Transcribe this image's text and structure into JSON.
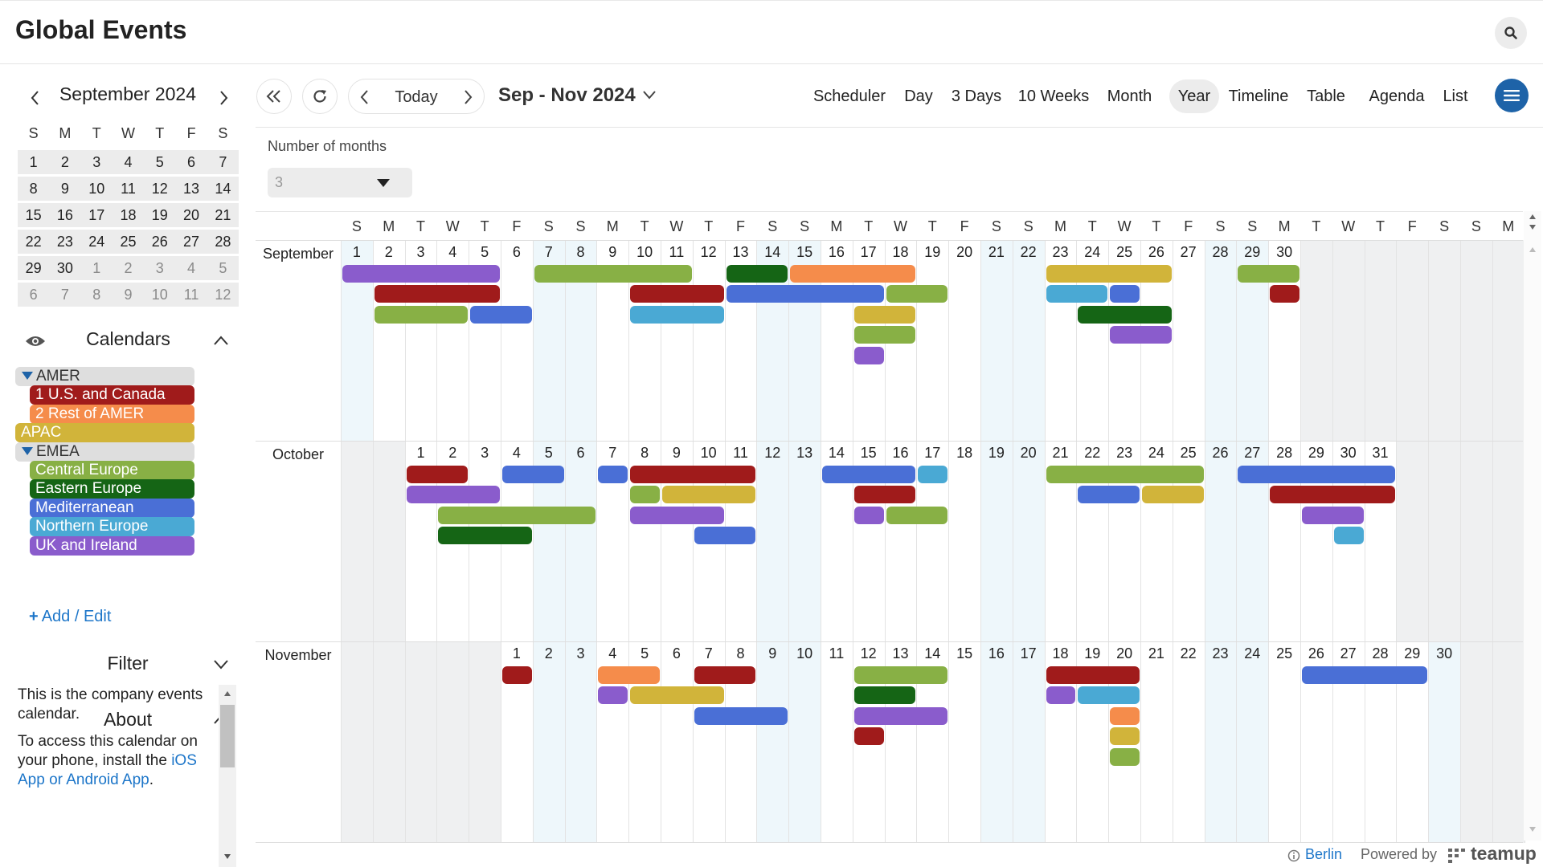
{
  "app": {
    "title": "Global Events"
  },
  "mini_calendar": {
    "title": "September 2024",
    "dow": [
      "S",
      "M",
      "T",
      "W",
      "T",
      "F",
      "S"
    ],
    "weeks": [
      [
        "1",
        "2",
        "3",
        "4",
        "5",
        "6",
        "7"
      ],
      [
        "8",
        "9",
        "10",
        "11",
        "12",
        "13",
        "14"
      ],
      [
        "15",
        "16",
        "17",
        "18",
        "19",
        "20",
        "21"
      ],
      [
        "22",
        "23",
        "24",
        "25",
        "26",
        "27",
        "28"
      ],
      [
        "29",
        "30",
        "1",
        "2",
        "3",
        "4",
        "5"
      ],
      [
        "6",
        "7",
        "8",
        "9",
        "10",
        "11",
        "12"
      ]
    ]
  },
  "calendars": {
    "title": "Calendars",
    "items": [
      {
        "label": "AMER",
        "type": "group",
        "level": 0
      },
      {
        "label": "1 U.S. and Canada",
        "color": "#a01b1b",
        "level": 1
      },
      {
        "label": "2 Rest of AMER",
        "color": "#f58c4b",
        "level": 1
      },
      {
        "label": "APAC",
        "color": "#d1b43a",
        "level": 0
      },
      {
        "label": "EMEA",
        "type": "group",
        "level": 0
      },
      {
        "label": "Central Europe",
        "color": "#88b045",
        "level": 1
      },
      {
        "label": "Eastern Europe",
        "color": "#156515",
        "level": 1
      },
      {
        "label": "Mediterranean",
        "color": "#4a6fd6",
        "level": 1
      },
      {
        "label": "Northern Europe",
        "color": "#4aa9d4",
        "level": 1
      },
      {
        "label": "UK and Ireland",
        "color": "#8a5ccc",
        "level": 1
      }
    ],
    "add_edit": "Add / Edit"
  },
  "filter": {
    "title": "Filter"
  },
  "about": {
    "title": "About",
    "text1": "This is the company events calendar.",
    "text2": "To access this calendar on your phone, install the ",
    "link": "iOS App or Android App",
    "text2_end": "."
  },
  "toolbar": {
    "today": "Today",
    "range": "Sep - Nov 2024",
    "views": [
      "Scheduler",
      "Day",
      "3 Days",
      "10 Weeks",
      "Month",
      "Year",
      "Timeline",
      "Table",
      "Agenda",
      "List"
    ],
    "active_view": "Year",
    "months_label": "Number of months",
    "months_value": "3"
  },
  "grid": {
    "dow_header": [
      "S",
      "M",
      "T",
      "W",
      "T",
      "F",
      "S",
      "S",
      "M",
      "T",
      "W",
      "T",
      "F",
      "S",
      "S",
      "M",
      "T",
      "W",
      "T",
      "F",
      "S",
      "S",
      "M",
      "T",
      "W",
      "T",
      "F",
      "S",
      "S",
      "M",
      "T",
      "W",
      "T",
      "F",
      "S",
      "S",
      "M"
    ],
    "months": [
      {
        "name": "September",
        "start": 0,
        "days": 30
      },
      {
        "name": "October",
        "start": 2,
        "days": 31
      },
      {
        "name": "November",
        "start": 5,
        "days": 30
      }
    ]
  },
  "events": [
    {
      "m": 0,
      "s": 0,
      "e": 4,
      "r": 0,
      "c": "#8a5ccc"
    },
    {
      "m": 0,
      "s": 1,
      "e": 4,
      "r": 1,
      "c": "#a01b1b"
    },
    {
      "m": 0,
      "s": 1,
      "e": 3,
      "r": 2,
      "c": "#88b045"
    },
    {
      "m": 0,
      "s": 4,
      "e": 5,
      "r": 2,
      "c": "#4a6fd6"
    },
    {
      "m": 0,
      "s": 6,
      "e": 10,
      "r": 0,
      "c": "#88b045"
    },
    {
      "m": 0,
      "s": 9,
      "e": 11,
      "r": 1,
      "c": "#a01b1b"
    },
    {
      "m": 0,
      "s": 9,
      "e": 11,
      "r": 2,
      "c": "#4aa9d4"
    },
    {
      "m": 0,
      "s": 12,
      "e": 13,
      "r": 0,
      "c": "#156515"
    },
    {
      "m": 0,
      "s": 14,
      "e": 17,
      "r": 0,
      "c": "#f58c4b"
    },
    {
      "m": 0,
      "s": 12,
      "e": 16,
      "r": 1,
      "c": "#4a6fd6"
    },
    {
      "m": 0,
      "s": 17,
      "e": 18,
      "r": 1,
      "c": "#88b045"
    },
    {
      "m": 0,
      "s": 16,
      "e": 17,
      "r": 2,
      "c": "#d1b43a"
    },
    {
      "m": 0,
      "s": 16,
      "e": 17,
      "r": 3,
      "c": "#88b045"
    },
    {
      "m": 0,
      "s": 16,
      "e": 16,
      "r": 4,
      "c": "#8a5ccc"
    },
    {
      "m": 0,
      "s": 22,
      "e": 25,
      "r": 0,
      "c": "#d1b43a"
    },
    {
      "m": 0,
      "s": 22,
      "e": 23,
      "r": 1,
      "c": "#4aa9d4"
    },
    {
      "m": 0,
      "s": 24,
      "e": 24,
      "r": 1,
      "c": "#4a6fd6"
    },
    {
      "m": 0,
      "s": 23,
      "e": 25,
      "r": 2,
      "c": "#156515"
    },
    {
      "m": 0,
      "s": 24,
      "e": 25,
      "r": 3,
      "c": "#8a5ccc"
    },
    {
      "m": 0,
      "s": 28,
      "e": 29,
      "r": 0,
      "c": "#88b045"
    },
    {
      "m": 0,
      "s": 29,
      "e": 29,
      "r": 1,
      "c": "#a01b1b"
    },
    {
      "m": 1,
      "s": 0,
      "e": 1,
      "r": 0,
      "c": "#a01b1b"
    },
    {
      "m": 1,
      "s": 0,
      "e": 2,
      "r": 1,
      "c": "#8a5ccc"
    },
    {
      "m": 1,
      "s": 1,
      "e": 5,
      "r": 2,
      "c": "#88b045"
    },
    {
      "m": 1,
      "s": 1,
      "e": 3,
      "r": 3,
      "c": "#156515"
    },
    {
      "m": 1,
      "s": 3,
      "e": 4,
      "r": 0,
      "c": "#4a6fd6"
    },
    {
      "m": 1,
      "s": 6,
      "e": 6,
      "r": 0,
      "c": "#4a6fd6"
    },
    {
      "m": 1,
      "s": 7,
      "e": 10,
      "r": 0,
      "c": "#a01b1b"
    },
    {
      "m": 1,
      "s": 7,
      "e": 7,
      "r": 1,
      "c": "#88b045"
    },
    {
      "m": 1,
      "s": 8,
      "e": 10,
      "r": 1,
      "c": "#d1b43a"
    },
    {
      "m": 1,
      "s": 7,
      "e": 9,
      "r": 2,
      "c": "#8a5ccc"
    },
    {
      "m": 1,
      "s": 9,
      "e": 10,
      "r": 3,
      "c": "#4a6fd6"
    },
    {
      "m": 1,
      "s": 13,
      "e": 15,
      "r": 0,
      "c": "#4a6fd6"
    },
    {
      "m": 1,
      "s": 16,
      "e": 16,
      "r": 0,
      "c": "#4aa9d4"
    },
    {
      "m": 1,
      "s": 14,
      "e": 15,
      "r": 1,
      "c": "#a01b1b"
    },
    {
      "m": 1,
      "s": 14,
      "e": 14,
      "r": 2,
      "c": "#8a5ccc"
    },
    {
      "m": 1,
      "s": 15,
      "e": 16,
      "r": 2,
      "c": "#88b045"
    },
    {
      "m": 1,
      "s": 20,
      "e": 24,
      "r": 0,
      "c": "#88b045"
    },
    {
      "m": 1,
      "s": 21,
      "e": 22,
      "r": 1,
      "c": "#4a6fd6"
    },
    {
      "m": 1,
      "s": 23,
      "e": 24,
      "r": 1,
      "c": "#d1b43a"
    },
    {
      "m": 1,
      "s": 26,
      "e": 30,
      "r": 0,
      "c": "#4a6fd6"
    },
    {
      "m": 1,
      "s": 27,
      "e": 30,
      "r": 1,
      "c": "#a01b1b"
    },
    {
      "m": 1,
      "s": 28,
      "e": 29,
      "r": 2,
      "c": "#8a5ccc"
    },
    {
      "m": 1,
      "s": 29,
      "e": 29,
      "r": 3,
      "c": "#4aa9d4"
    },
    {
      "m": 2,
      "s": 0,
      "e": 0,
      "r": 0,
      "c": "#a01b1b"
    },
    {
      "m": 2,
      "s": 3,
      "e": 4,
      "r": 0,
      "c": "#f58c4b"
    },
    {
      "m": 2,
      "s": 3,
      "e": 3,
      "r": 1,
      "c": "#8a5ccc"
    },
    {
      "m": 2,
      "s": 4,
      "e": 6,
      "r": 1,
      "c": "#d1b43a"
    },
    {
      "m": 2,
      "s": 6,
      "e": 7,
      "r": 0,
      "c": "#a01b1b"
    },
    {
      "m": 2,
      "s": 6,
      "e": 8,
      "r": 2,
      "c": "#4a6fd6"
    },
    {
      "m": 2,
      "s": 11,
      "e": 13,
      "r": 0,
      "c": "#88b045"
    },
    {
      "m": 2,
      "s": 11,
      "e": 12,
      "r": 1,
      "c": "#156515"
    },
    {
      "m": 2,
      "s": 11,
      "e": 13,
      "r": 2,
      "c": "#8a5ccc"
    },
    {
      "m": 2,
      "s": 11,
      "e": 11,
      "r": 3,
      "c": "#a01b1b"
    },
    {
      "m": 2,
      "s": 17,
      "e": 19,
      "r": 0,
      "c": "#a01b1b"
    },
    {
      "m": 2,
      "s": 17,
      "e": 17,
      "r": 1,
      "c": "#8a5ccc"
    },
    {
      "m": 2,
      "s": 18,
      "e": 19,
      "r": 1,
      "c": "#4aa9d4"
    },
    {
      "m": 2,
      "s": 19,
      "e": 19,
      "r": 2,
      "c": "#f58c4b"
    },
    {
      "m": 2,
      "s": 19,
      "e": 19,
      "r": 3,
      "c": "#d1b43a"
    },
    {
      "m": 2,
      "s": 19,
      "e": 19,
      "r": 4,
      "c": "#88b045"
    },
    {
      "m": 2,
      "s": 25,
      "e": 28,
      "r": 0,
      "c": "#4a6fd6"
    }
  ],
  "footer": {
    "timezone": "Berlin",
    "powered": "Powered by",
    "brand": "teamup"
  }
}
